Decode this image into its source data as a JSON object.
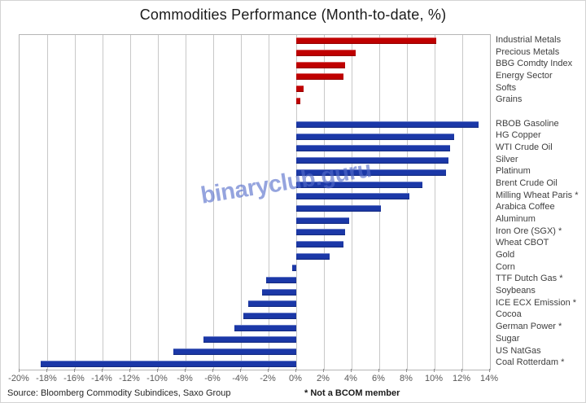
{
  "title": "Commodities Performance (Month-to-date, %)",
  "source_text": "Source: Bloomberg Commodity Subindices, Saxo Group",
  "footnote_text": "* Not a BCOM member",
  "watermark_text": "binaryclub.guru",
  "colors": {
    "index_bar": "#c00000",
    "commodity_bar": "#1b38a8",
    "gridline": "#c8c8c8",
    "plot_border": "#b5b5b5",
    "axis_text": "#595959",
    "category_text": "#3f3f3f",
    "watermark": "rgba(84,108,202,0.62)"
  },
  "chart_data": {
    "type": "bar",
    "orientation": "horizontal",
    "title": "Commodities Performance (Month-to-date, %)",
    "xlim": [
      -20,
      14
    ],
    "x_tick_step": 2,
    "x_tick_labels": [
      "-20%",
      "-18%",
      "-16%",
      "-14%",
      "-12%",
      "-10%",
      "-8%",
      "-6%",
      "-4%",
      "-2%",
      "0%",
      "2%",
      "4%",
      "6%",
      "8%",
      "10%",
      "12%",
      "14%"
    ],
    "grid": true,
    "legend": "none",
    "series": [
      {
        "name": "indices",
        "color": "#c00000",
        "categories": [
          "Industrial Metals",
          "Precious Metals",
          "BBG Comdty Index",
          "Energy Sector",
          "Softs",
          "Grains"
        ],
        "values": [
          10.1,
          4.3,
          3.5,
          3.4,
          0.5,
          0.3
        ]
      },
      {
        "name": "commodities",
        "color": "#1b38a8",
        "categories": [
          "RBOB Gasoline",
          "HG Copper",
          "WTI Crude Oil",
          "Silver",
          "Platinum",
          "Brent Crude Oil",
          "Milling Wheat Paris *",
          "Arabica Coffee",
          "Aluminum",
          "Iron Ore (SGX) *",
          "Wheat CBOT",
          "Gold",
          "Corn",
          "TTF Dutch Gas *",
          "Soybeans",
          "ICE ECX Emission *",
          "Cocoa",
          "German Power *",
          "Sugar",
          "US NatGas",
          "Coal Rotterdam *"
        ],
        "values": [
          13.2,
          11.4,
          11.1,
          11.0,
          10.8,
          9.1,
          8.2,
          6.1,
          3.8,
          3.5,
          3.4,
          2.4,
          -0.3,
          -2.2,
          -2.5,
          -3.5,
          -3.8,
          -4.5,
          -6.7,
          -8.9,
          -18.5
        ]
      }
    ]
  }
}
